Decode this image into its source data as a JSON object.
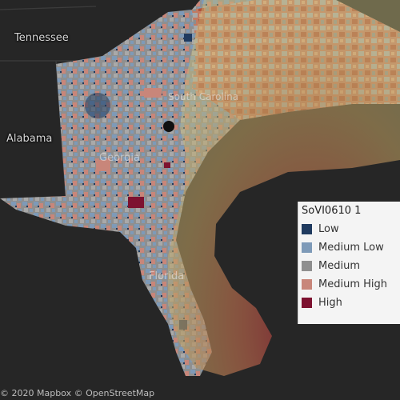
{
  "map": {
    "labels": {
      "tennessee": "Tennessee",
      "alabama": "Alabama",
      "south_carolina": "South Carolina",
      "georgia": "Georgia",
      "florida": "Florida"
    },
    "attribution": "© 2020 Mapbox © OpenStreetMap"
  },
  "legend": {
    "title": "SoVI0610 1",
    "items": [
      {
        "label": "Low",
        "color": "#1f3a5f"
      },
      {
        "label": "Medium Low",
        "color": "#7e9ab8"
      },
      {
        "label": "Medium",
        "color": "#8f8f8f"
      },
      {
        "label": "Medium High",
        "color": "#c8867a"
      },
      {
        "label": "High",
        "color": "#7d1230"
      }
    ]
  },
  "colors": {
    "background": "#262626",
    "forecast_cone_inner": "#7a1e30",
    "forecast_cone_outer": "#b8ac6a"
  }
}
